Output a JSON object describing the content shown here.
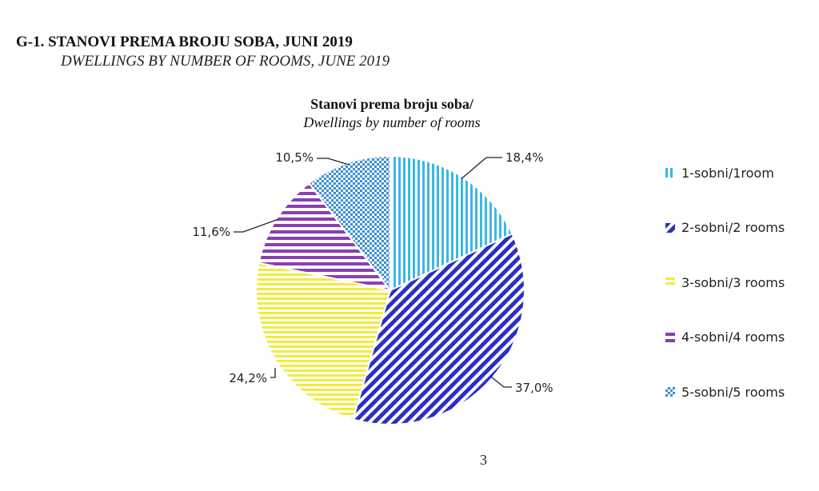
{
  "figure": {
    "title": "G-1. STANOVI PREMA BROJU SOBA, JUNI 2019",
    "subtitle": "DWELLINGS BY NUMBER OF ROOMS, JUNE 2019"
  },
  "chart_data": {
    "type": "pie",
    "title": "Stanovi prema broju soba/",
    "subtitle": "Dwellings by number of rooms",
    "legend_position": "right",
    "slices": [
      {
        "name": "1-sobni/1room",
        "value": 18.4,
        "label": "18,4%",
        "color": "#3cb7e6",
        "pattern": "vertical-stripes"
      },
      {
        "name": "2-sobni/2 rooms",
        "value": 37.0,
        "label": "37,0%",
        "color": "#2b2fc2",
        "pattern": "diagonal-stripes"
      },
      {
        "name": "3-sobni/3 rooms",
        "value": 24.2,
        "label": "24,2%",
        "color": "#f2ec3a",
        "pattern": "horizontal-stripes"
      },
      {
        "name": "4-sobni/4 rooms",
        "value": 11.6,
        "label": "11,6%",
        "color": "#8a3eb0",
        "pattern": "horizontal-stripes-wide"
      },
      {
        "name": "5-sobni/5 rooms",
        "value": 10.5,
        "label": "10,5%",
        "color": "#3a8fd1",
        "pattern": "crosshatch"
      }
    ]
  },
  "page_number": "3"
}
